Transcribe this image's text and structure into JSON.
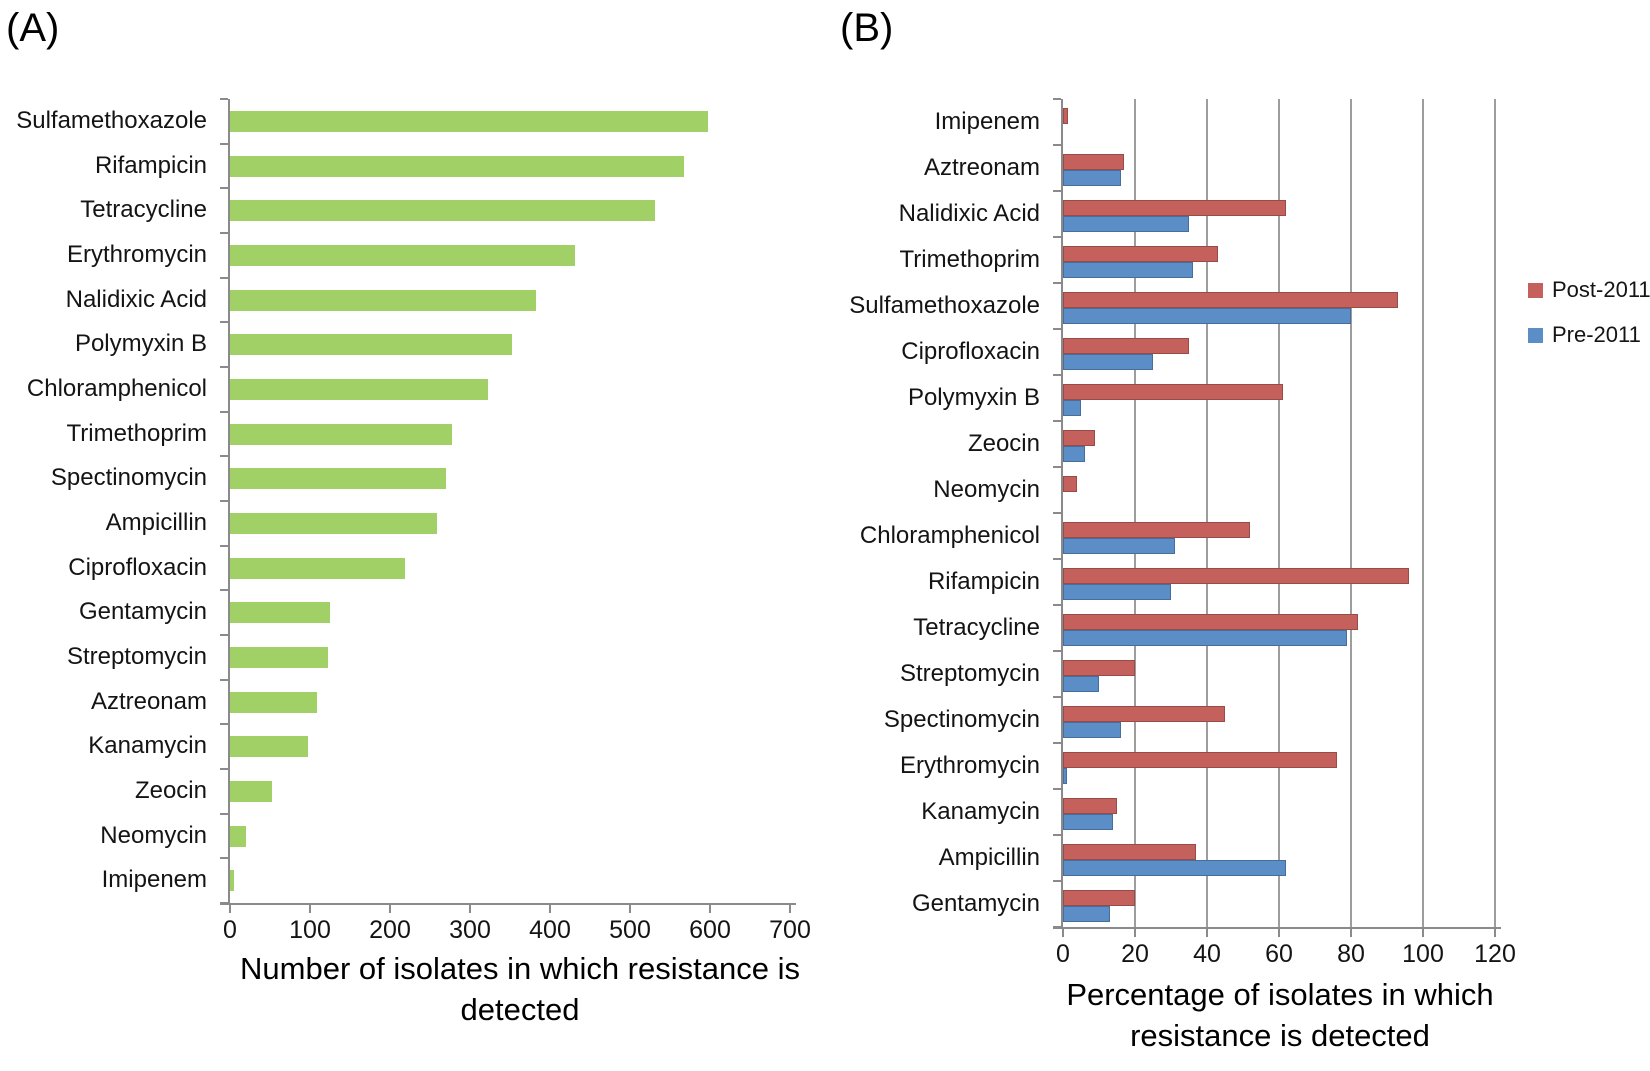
{
  "figure": {
    "panel_a_label": "(A)",
    "panel_b_label": "(B)"
  },
  "style": {
    "axis_color": "#8a8a8a",
    "gridline_color": "#9d9d9d",
    "text_color": "#141414"
  },
  "chart_data": [
    {
      "panel": "A",
      "type": "bar",
      "orientation": "horizontal",
      "xlabel": "Number of isolates in which resistance is detected",
      "xlabel_lines": [
        "Number of isolates in which resistance is",
        "detected"
      ],
      "categories": [
        "Sulfamethoxazole",
        "Rifampicin",
        "Tetracycline",
        "Erythromycin",
        "Nalidixic Acid",
        "Polymyxin B",
        "Chloramphenicol",
        "Trimethoprim",
        "Spectinomycin",
        "Ampicillin",
        "Ciprofloxacin",
        "Gentamycin",
        "Streptomycin",
        "Aztreonam",
        "Kanamycin",
        "Zeocin",
        "Neomycin",
        "Imipenem"
      ],
      "values": [
        598,
        568,
        531,
        431,
        382,
        353,
        322,
        277,
        270,
        259,
        219,
        125,
        122,
        109,
        98,
        52,
        20,
        5
      ],
      "xlim": [
        0,
        700
      ],
      "xticks": [
        0,
        100,
        200,
        300,
        400,
        500,
        600,
        700
      ],
      "bar_color": "#a0d066",
      "grid": false
    },
    {
      "panel": "B",
      "type": "bar",
      "orientation": "horizontal",
      "xlabel": "Percentage of isolates in which resistance is detected",
      "xlabel_lines": [
        "Percentage of isolates in which",
        "resistance is detected"
      ],
      "categories": [
        "Imipenem",
        "Aztreonam",
        "Nalidixic Acid",
        "Trimethoprim",
        "Sulfamethoxazole",
        "Ciprofloxacin",
        "Polymyxin B",
        "Zeocin",
        "Neomycin",
        "Chloramphenicol",
        "Rifampicin",
        "Tetracycline",
        "Streptomycin",
        "Spectinomycin",
        "Erythromycin",
        "Kanamycin",
        "Ampicillin",
        "Gentamycin"
      ],
      "series": [
        {
          "name": "Post-2011",
          "color": "#c4615c",
          "values": [
            1.5,
            17,
            62,
            43,
            93,
            35,
            61,
            9,
            4,
            52,
            96,
            82,
            20,
            45,
            76,
            15,
            37,
            20
          ]
        },
        {
          "name": "Pre-2011",
          "color": "#5b8dc7",
          "values": [
            0,
            16,
            35,
            36,
            80,
            25,
            5,
            6,
            0,
            31,
            30,
            79,
            10,
            16,
            1,
            14,
            62,
            13
          ]
        }
      ],
      "xlim": [
        0,
        120
      ],
      "xticks": [
        0,
        20,
        40,
        60,
        80,
        100,
        120
      ],
      "grid": true,
      "legend_position": "right"
    }
  ]
}
